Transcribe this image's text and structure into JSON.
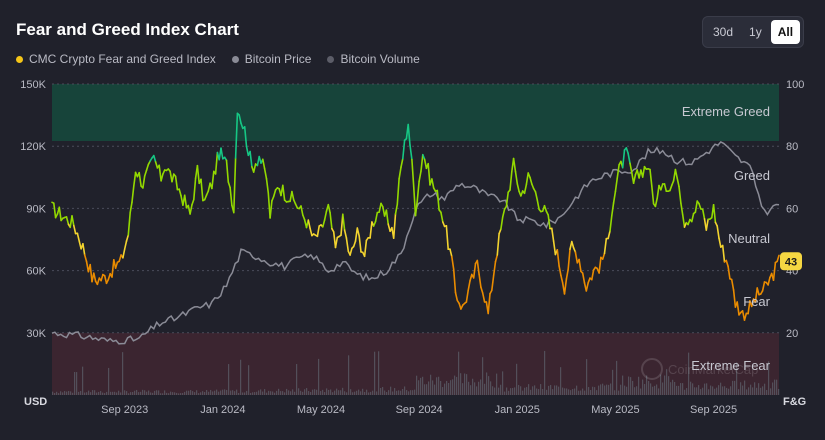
{
  "title": "Fear and Greed Index Chart",
  "ranges": [
    {
      "label": "30d",
      "active": false
    },
    {
      "label": "1y",
      "active": false
    },
    {
      "label": "All",
      "active": true
    }
  ],
  "legend": [
    {
      "label": "CMC Crypto Fear and Greed Index",
      "color": "#f5c518"
    },
    {
      "label": "Bitcoin Price",
      "color": "#8a8b96"
    },
    {
      "label": "Bitcoin Volume",
      "color": "#5c5d68"
    }
  ],
  "left_axis": {
    "unit": "USD",
    "ticks": [
      "150K",
      "120K",
      "90K",
      "60K",
      "30K"
    ]
  },
  "right_axis": {
    "unit": "F&G",
    "ticks": [
      "100",
      "80",
      "60",
      "40",
      "20"
    ]
  },
  "zones": {
    "extreme_greed": "Extreme Greed",
    "greed": "Greed",
    "neutral": "Neutral",
    "fear": "Fear",
    "extreme_fear": "Extreme Fear"
  },
  "current_value": "43",
  "watermark": "CoinMarketCap",
  "colors": {
    "background": "#20212b",
    "extreme_greed_zone": "#17443a",
    "extreme_fear_zone": "#3b2530",
    "price_line": "#8a8b96",
    "volume_bars": "#5c5d68",
    "badge": "#f5d742"
  },
  "chart_data": {
    "type": "line",
    "x_labels": [
      "Sep 2023",
      "Jan 2024",
      "May 2024",
      "Sep 2024",
      "Jan 2025",
      "May 2025",
      "Sep 2025"
    ],
    "x_label_t": [
      0.1,
      0.235,
      0.37,
      0.505,
      0.64,
      0.775,
      0.91
    ],
    "left_ylim": [
      0,
      150000
    ],
    "right_ylim": [
      0,
      100
    ],
    "series": [
      {
        "name": "CMC Crypto Fear and Greed Index",
        "axis": "right",
        "t": [
          0,
          0.012,
          0.03,
          0.045,
          0.055,
          0.06,
          0.075,
          0.085,
          0.095,
          0.105,
          0.115,
          0.125,
          0.14,
          0.15,
          0.155,
          0.165,
          0.175,
          0.19,
          0.2,
          0.21,
          0.22,
          0.23,
          0.24,
          0.25,
          0.255,
          0.265,
          0.275,
          0.285,
          0.295,
          0.3,
          0.31,
          0.32,
          0.335,
          0.35,
          0.36,
          0.37,
          0.38,
          0.39,
          0.4,
          0.41,
          0.42,
          0.43,
          0.44,
          0.45,
          0.46,
          0.47,
          0.48,
          0.49,
          0.5,
          0.51,
          0.52,
          0.53,
          0.54,
          0.55,
          0.555,
          0.565,
          0.575,
          0.585,
          0.595,
          0.6,
          0.61,
          0.62,
          0.635,
          0.645,
          0.655,
          0.66,
          0.67,
          0.68,
          0.69,
          0.7,
          0.705,
          0.715,
          0.725,
          0.735,
          0.745,
          0.755,
          0.765,
          0.77,
          0.78,
          0.79,
          0.8,
          0.81,
          0.82,
          0.83,
          0.84,
          0.85,
          0.86,
          0.87,
          0.88,
          0.89,
          0.9,
          0.91,
          0.92,
          0.93,
          0.94,
          0.95,
          0.96,
          0.97,
          0.98,
          0.99,
          1.0
        ],
        "values": [
          60,
          58,
          55,
          46,
          38,
          37,
          38,
          41,
          43,
          52,
          73,
          68,
          76,
          70,
          74,
          70,
          66,
          58,
          72,
          62,
          68,
          78,
          74,
          60,
          93,
          85,
          73,
          77,
          70,
          58,
          68,
          65,
          62,
          56,
          50,
          53,
          60,
          47,
          56,
          44,
          52,
          45,
          55,
          60,
          57,
          52,
          73,
          88,
          60,
          78,
          70,
          64,
          55,
          43,
          33,
          28,
          35,
          42,
          32,
          26,
          44,
          56,
          74,
          64,
          70,
          68,
          62,
          58,
          50,
          40,
          35,
          48,
          44,
          35,
          40,
          42,
          50,
          60,
          72,
          78,
          68,
          72,
          74,
          60,
          70,
          66,
          72,
          56,
          58,
          62,
          54,
          60,
          48,
          42,
          30,
          26,
          28,
          32,
          34,
          38,
          43
        ]
      },
      {
        "name": "Bitcoin Price",
        "axis": "left",
        "t": [
          0,
          0.03,
          0.05,
          0.08,
          0.1,
          0.12,
          0.13,
          0.15,
          0.17,
          0.2,
          0.22,
          0.24,
          0.26,
          0.28,
          0.3,
          0.32,
          0.34,
          0.36,
          0.38,
          0.4,
          0.42,
          0.44,
          0.46,
          0.48,
          0.5,
          0.52,
          0.54,
          0.56,
          0.58,
          0.6,
          0.62,
          0.64,
          0.66,
          0.68,
          0.7,
          0.72,
          0.74,
          0.76,
          0.78,
          0.8,
          0.82,
          0.84,
          0.86,
          0.88,
          0.9,
          0.92,
          0.94,
          0.96,
          0.98,
          1.0
        ],
        "values": [
          30000,
          29000,
          28000,
          26000,
          26500,
          27000,
          30000,
          35000,
          37000,
          42000,
          44000,
          53000,
          69000,
          67000,
          64000,
          62000,
          66000,
          67000,
          60000,
          64000,
          58000,
          56000,
          60000,
          68000,
          90000,
          97000,
          95000,
          102000,
          100000,
          96000,
          94000,
          85000,
          84000,
          82000,
          86000,
          95000,
          103000,
          106000,
          108000,
          109000,
          117000,
          118000,
          113000,
          112000,
          117000,
          122000,
          115000,
          110000,
          88000,
          92000
        ]
      }
    ]
  }
}
